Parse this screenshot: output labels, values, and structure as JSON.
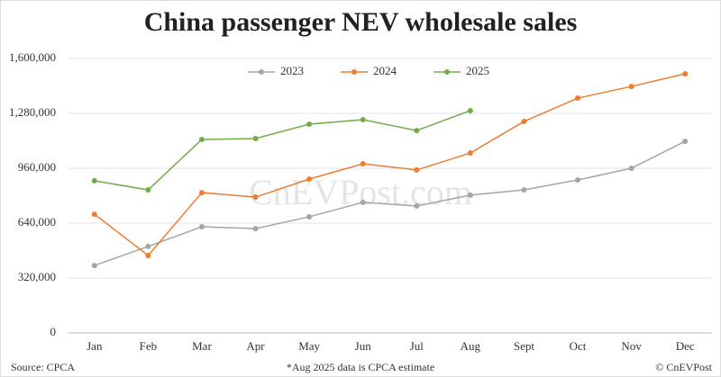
{
  "chart_data": {
    "type": "line",
    "title": "China passenger NEV wholesale sales",
    "watermark": "CnEVPost.com",
    "source": "Source: CPCA",
    "note": "*Aug 2025 data is CPCA estimate",
    "credit": "© CnEVPost",
    "categories": [
      "Jan",
      "Feb",
      "Mar",
      "Apr",
      "May",
      "Jun",
      "Jul",
      "Aug",
      "Sept",
      "Oct",
      "Nov",
      "Dec"
    ],
    "series": [
      {
        "name": "2023",
        "color": "#a5a5a5",
        "values": [
          393000,
          504000,
          619000,
          608000,
          677000,
          761000,
          740000,
          803000,
          834000,
          892000,
          960000,
          1117000
        ]
      },
      {
        "name": "2024",
        "color": "#ed7d31",
        "values": [
          692000,
          451000,
          818000,
          792000,
          897000,
          986000,
          950000,
          1049000,
          1233000,
          1369000,
          1437000,
          1511000
        ]
      },
      {
        "name": "2025",
        "color": "#70ad47",
        "values": [
          887000,
          834000,
          1128000,
          1133000,
          1217000,
          1243000,
          1180000,
          1296000,
          null,
          null,
          null,
          null
        ]
      }
    ],
    "ylim": [
      0,
      1600000
    ],
    "yticks": [
      0,
      {
        "value": 320000,
        "label": "320,000"
      },
      {
        "value": 640000,
        "label": "640,000"
      },
      {
        "value": 960000,
        "label": "960,000"
      },
      {
        "value": 1280000,
        "label": "1,280,000"
      },
      {
        "value": 1600000,
        "label": "1,600,000"
      }
    ],
    "grid": true,
    "legend": "top"
  }
}
